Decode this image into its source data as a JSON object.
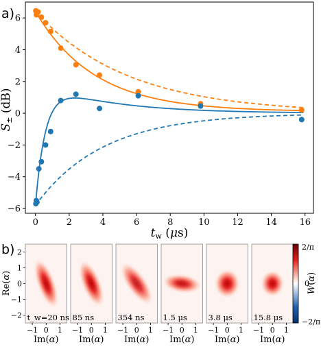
{
  "chart_data": [
    {
      "panel_label": "a)",
      "type": "scatter",
      "xlabel": "t_w (μs)",
      "ylabel": "S_± (dB)",
      "xlim": [
        -0.6,
        16.5
      ],
      "ylim": [
        -6.3,
        7.0
      ],
      "xticks": [
        "0",
        "2",
        "4",
        "6",
        "8",
        "10",
        "12",
        "14",
        "16"
      ],
      "yticks": [
        "−6",
        "−4",
        "−2",
        "0",
        "2",
        "4",
        "6"
      ],
      "grid": false,
      "legend": "none",
      "series": [
        {
          "color": "#ff7f0e",
          "points": [
            {
              "x": 0.02,
              "y": 6.45
            },
            {
              "x": 0.05,
              "y": 6.2
            },
            {
              "x": 0.085,
              "y": 6.3
            },
            {
              "x": 0.15,
              "y": 6.38
            },
            {
              "x": 0.35,
              "y": 6.05
            },
            {
              "x": 0.6,
              "y": 5.7
            },
            {
              "x": 0.9,
              "y": 5.15
            },
            {
              "x": 1.5,
              "y": 4.1
            },
            {
              "x": 2.4,
              "y": 3.05
            },
            {
              "x": 3.8,
              "y": 2.4
            },
            {
              "x": 6.1,
              "y": 1.35
            },
            {
              "x": 9.8,
              "y": 0.6
            },
            {
              "x": 15.8,
              "y": 0.2
            }
          ],
          "fit_solid": {
            "A": 6.3,
            "tau": 3.5,
            "offset": 0.1
          },
          "model_dashed": {
            "A": 6.4,
            "tau": 5.5,
            "offset": 0.0
          }
        },
        {
          "color": "#1f77b4",
          "points": [
            {
              "x": 0.02,
              "y": -5.7
            },
            {
              "x": 0.05,
              "y": -5.5
            },
            {
              "x": 0.085,
              "y": -5.6
            },
            {
              "x": 0.2,
              "y": -3.5
            },
            {
              "x": 0.35,
              "y": -3.05
            },
            {
              "x": 0.6,
              "y": -2.0
            },
            {
              "x": 0.9,
              "y": -1.15
            },
            {
              "x": 1.5,
              "y": 0.8
            },
            {
              "x": 2.4,
              "y": 1.2
            },
            {
              "x": 3.8,
              "y": 0.3
            },
            {
              "x": 6.1,
              "y": 1.1
            },
            {
              "x": 9.8,
              "y": 0.45
            },
            {
              "x": 15.8,
              "y": -0.4
            }
          ],
          "model_dashed": {
            "A": -5.8,
            "tau": 4.0,
            "offset": 0.0
          }
        }
      ]
    },
    {
      "panel_label": "b)",
      "type": "heatmap",
      "xlabel": "Im(α)",
      "ylabel": "Re(α)",
      "xticks": [
        "−1",
        "0",
        "1"
      ],
      "yticks": [
        "2",
        "1",
        "0",
        "−1",
        "−2"
      ],
      "xlim": [
        -1.5,
        1.5
      ],
      "ylim": [
        -2.5,
        2.5
      ],
      "colorbar": {
        "label": "W(α)",
        "max": "2/π",
        "mid": "0",
        "min": "−2/π"
      },
      "panels": [
        {
          "label": "t_w=20 ns",
          "sx": 0.38,
          "sy": 1.0,
          "angle": -20,
          "amp": 1.0
        },
        {
          "label": "85 ns",
          "sx": 0.4,
          "sy": 0.95,
          "angle": -22,
          "amp": 1.0
        },
        {
          "label": "354 ns",
          "sx": 0.42,
          "sy": 0.95,
          "angle": -35,
          "amp": 0.9
        },
        {
          "label": "1.5 μs",
          "sx": 0.85,
          "sy": 0.35,
          "angle": 8,
          "amp": 0.95
        },
        {
          "label": "3.8 μs",
          "sx": 0.55,
          "sy": 0.55,
          "angle": 0,
          "amp": 1.0
        },
        {
          "label": "15.8 μs",
          "sx": 0.5,
          "sy": 0.5,
          "angle": 0,
          "amp": 1.0
        }
      ]
    }
  ]
}
